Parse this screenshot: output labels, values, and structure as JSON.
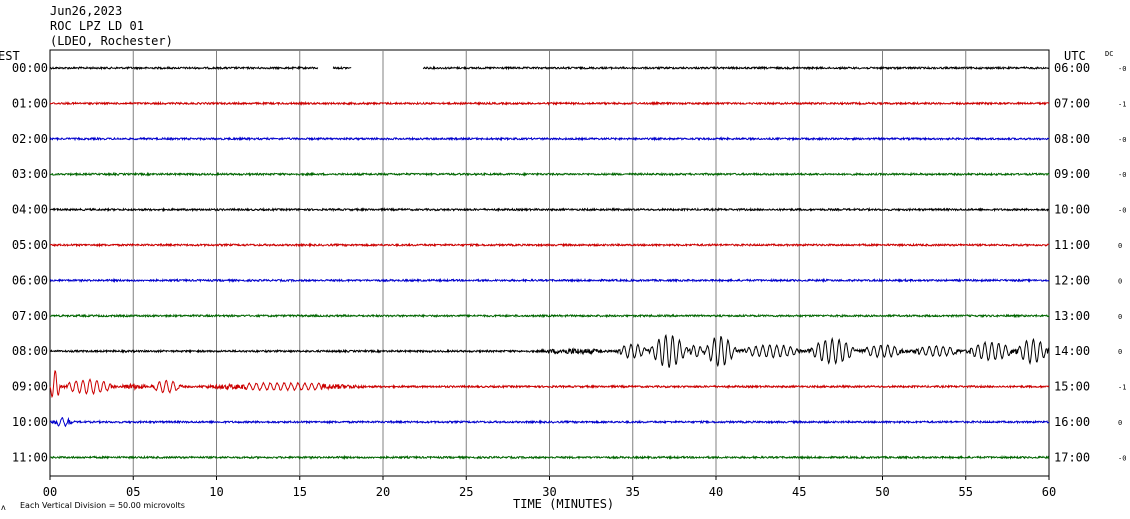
{
  "header": {
    "date": "Jun26,2023",
    "station": "ROC LPZ LD 01",
    "network": "(LDEO, Rochester)"
  },
  "left_zone_label": "EST",
  "right_zone_label": "UTC",
  "dc_label": "DC",
  "footer": {
    "scale_note": "Each Vertical Division =   50.00 microvolts",
    "corner_mark": "ᴧ"
  },
  "chart_data": {
    "type": "line",
    "title": "",
    "xlabel": "TIME (MINUTES)",
    "xlim": [
      0,
      60
    ],
    "x_ticks": [
      "00",
      "05",
      "10",
      "15",
      "20",
      "25",
      "30",
      "35",
      "40",
      "45",
      "50",
      "55",
      "60"
    ],
    "grid": "vertical lines every 5 minutes",
    "trace_colors": [
      "#000000",
      "#cc0000",
      "#0000cc",
      "#006600"
    ],
    "rows": [
      {
        "est": "00:00",
        "utc": "06:00",
        "dc": "-0",
        "color": "#000000",
        "gaps": [
          [
            16.1,
            17.0
          ],
          [
            18.1,
            22.4
          ]
        ],
        "bursts": []
      },
      {
        "est": "01:00",
        "utc": "07:00",
        "dc": "-1",
        "color": "#cc0000",
        "gaps": [],
        "bursts": []
      },
      {
        "est": "02:00",
        "utc": "08:00",
        "dc": "-0",
        "color": "#0000cc",
        "gaps": [],
        "bursts": []
      },
      {
        "est": "03:00",
        "utc": "09:00",
        "dc": "-0",
        "color": "#006600",
        "gaps": [],
        "bursts": []
      },
      {
        "est": "04:00",
        "utc": "10:00",
        "dc": "-0",
        "color": "#000000",
        "gaps": [],
        "bursts": []
      },
      {
        "est": "05:00",
        "utc": "11:00",
        "dc": "0",
        "color": "#cc0000",
        "gaps": [],
        "bursts": []
      },
      {
        "est": "06:00",
        "utc": "12:00",
        "dc": "0",
        "color": "#0000cc",
        "gaps": [],
        "bursts": []
      },
      {
        "est": "07:00",
        "utc": "13:00",
        "dc": "0",
        "color": "#006600",
        "gaps": [],
        "bursts": []
      },
      {
        "est": "08:00",
        "utc": "14:00",
        "dc": "0",
        "color": "#000000",
        "gaps": [],
        "bursts": [
          [
            29,
            34,
            0.3
          ],
          [
            34,
            36,
            0.7
          ],
          [
            36,
            38.3,
            1.6
          ],
          [
            38.3,
            39.3,
            0.6
          ],
          [
            39.3,
            41.2,
            1.5
          ],
          [
            41.2,
            45.5,
            0.6
          ],
          [
            45.5,
            48.5,
            1.2
          ],
          [
            48.5,
            51.5,
            0.6
          ],
          [
            51.5,
            55,
            0.5
          ],
          [
            55,
            58,
            0.9
          ],
          [
            58,
            60,
            1.2
          ]
        ]
      },
      {
        "est": "09:00",
        "utc": "15:00",
        "dc": "-1",
        "color": "#cc0000",
        "gaps": [],
        "bursts": [
          [
            0,
            0.6,
            1.6
          ],
          [
            0.6,
            4,
            0.7
          ],
          [
            4,
            6,
            0.3
          ],
          [
            6,
            8,
            0.6
          ],
          [
            8,
            20,
            0.35
          ]
        ]
      },
      {
        "est": "10:00",
        "utc": "16:00",
        "dc": "0",
        "color": "#0000cc",
        "gaps": [],
        "bursts": [
          [
            0,
            1.5,
            0.4
          ]
        ]
      },
      {
        "est": "11:00",
        "utc": "17:00",
        "dc": "-0",
        "color": "#006600",
        "gaps": [],
        "bursts": []
      }
    ]
  }
}
